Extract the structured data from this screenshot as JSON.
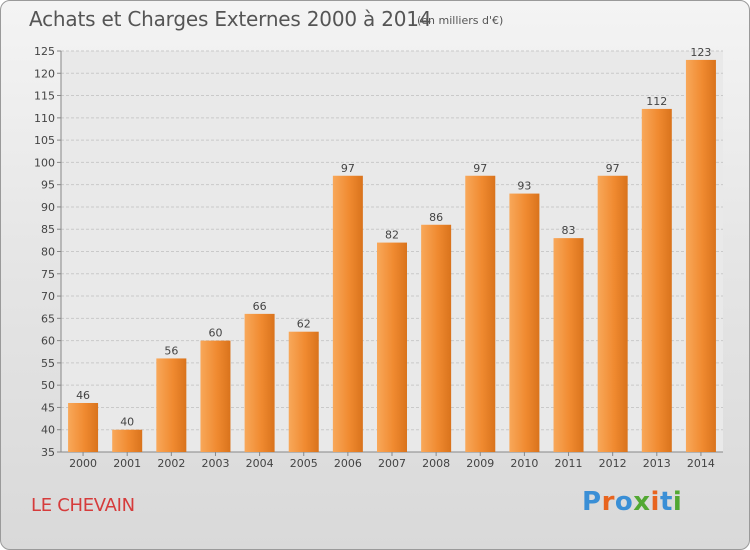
{
  "title": "Achats et Charges Externes 2000 à 2014",
  "subtitle": "(en milliers d'€)",
  "commune": "LE CHEVAIN",
  "logo": {
    "text": "Proxiti",
    "letters": [
      "P",
      "r",
      "o",
      "x",
      "i",
      "t",
      "i"
    ],
    "colors": [
      "#3a8fd6",
      "#e8641e",
      "#3a8fd6",
      "#52a832",
      "#e8641e",
      "#3a8fd6",
      "#52a832"
    ]
  },
  "chart_data": {
    "type": "bar",
    "categories": [
      "2000",
      "2001",
      "2002",
      "2003",
      "2004",
      "2005",
      "2006",
      "2007",
      "2008",
      "2009",
      "2010",
      "2011",
      "2012",
      "2013",
      "2014"
    ],
    "values": [
      46,
      40,
      56,
      60,
      66,
      62,
      97,
      82,
      86,
      97,
      93,
      83,
      97,
      112,
      123
    ],
    "yticks": [
      35,
      40,
      45,
      50,
      55,
      60,
      65,
      70,
      75,
      80,
      85,
      90,
      95,
      100,
      105,
      110,
      115,
      120,
      125
    ],
    "ylim": [
      35,
      125
    ],
    "grid": true,
    "bar_color": "#f08a30",
    "bar_color_light": "#f8a85a",
    "bar_color_dark": "#d9731c"
  }
}
